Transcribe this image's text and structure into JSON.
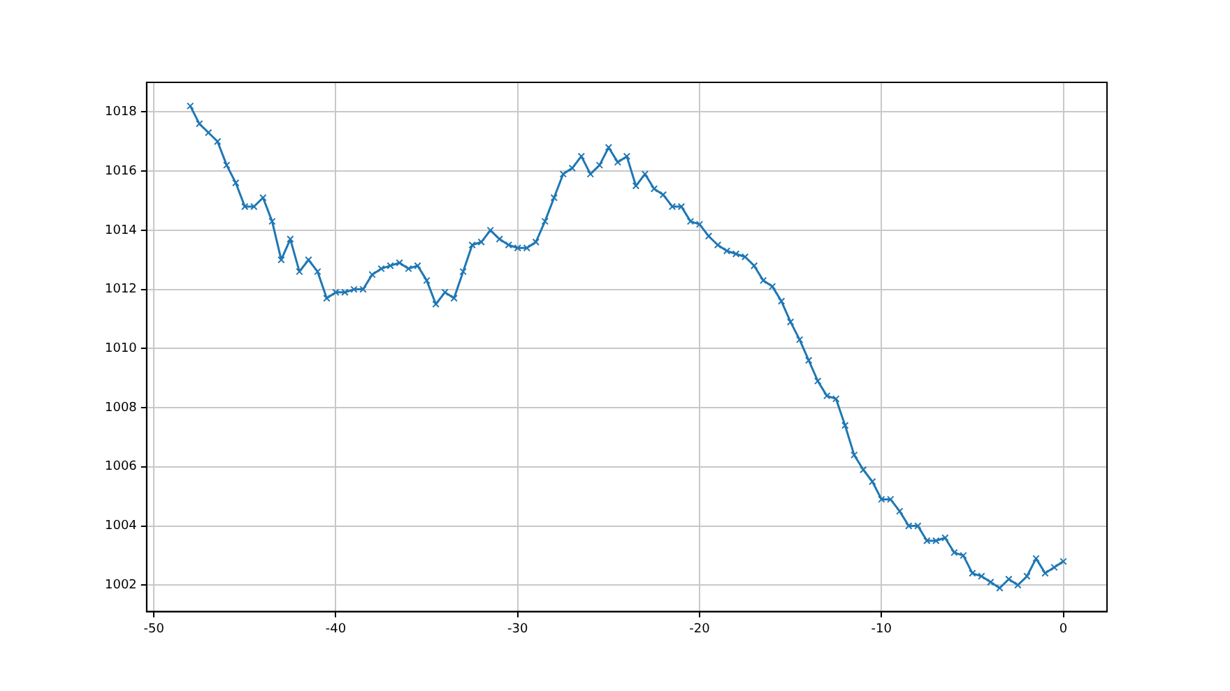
{
  "chart_data": {
    "type": "line",
    "x": [
      -48,
      -47.5,
      -47,
      -46.5,
      -46,
      -45.5,
      -45,
      -44.5,
      -44,
      -43.5,
      -43,
      -42.5,
      -42,
      -41.5,
      -41,
      -40.5,
      -40,
      -39.5,
      -39,
      -38.5,
      -38,
      -37.5,
      -37,
      -36.5,
      -36,
      -35.5,
      -35,
      -34.5,
      -34,
      -33.5,
      -33,
      -32.5,
      -32,
      -31.5,
      -31,
      -30.5,
      -30,
      -29.5,
      -29,
      -28.5,
      -28,
      -27.5,
      -27,
      -26.5,
      -26,
      -25.5,
      -25,
      -24.5,
      -24,
      -23.5,
      -23,
      -22.5,
      -22,
      -21.5,
      -21,
      -20.5,
      -20,
      -19.5,
      -19,
      -18.5,
      -18,
      -17.5,
      -17,
      -16.5,
      -16,
      -15.5,
      -15,
      -14.5,
      -14,
      -13.5,
      -13,
      -12.5,
      -12,
      -11.5,
      -11,
      -10.5,
      -10,
      -9.5,
      -9,
      -8.5,
      -8,
      -7.5,
      -7,
      -6.5,
      -6,
      -5.5,
      -5,
      -4.5,
      -4,
      -3.5,
      -3,
      -2.5,
      -2,
      -1.5,
      -1,
      -0.5,
      0
    ],
    "series": [
      {
        "color": "#1f77b4",
        "values": [
          1018.2,
          1017.6,
          1017.3,
          1017.0,
          1016.2,
          1015.6,
          1014.8,
          1014.8,
          1015.1,
          1014.3,
          1013.0,
          1013.7,
          1012.6,
          1013.0,
          1012.6,
          1011.7,
          1011.9,
          1011.9,
          1012.0,
          1012.0,
          1012.5,
          1012.7,
          1012.8,
          1012.9,
          1012.7,
          1012.8,
          1012.3,
          1011.5,
          1011.9,
          1011.7,
          1012.6,
          1013.5,
          1013.6,
          1014.0,
          1013.7,
          1013.5,
          1013.4,
          1013.4,
          1013.6,
          1014.3,
          1015.1,
          1015.9,
          1016.1,
          1016.5,
          1015.9,
          1016.2,
          1016.8,
          1016.3,
          1016.5,
          1015.5,
          1015.9,
          1015.4,
          1015.2,
          1014.8,
          1014.8,
          1014.3,
          1014.2,
          1013.8,
          1013.5,
          1013.3,
          1013.2,
          1013.1,
          1012.8,
          1012.3,
          1012.1,
          1011.6,
          1010.9,
          1010.3,
          1009.6,
          1008.9,
          1008.4,
          1008.3,
          1007.4,
          1006.4,
          1005.9,
          1005.5,
          1004.9,
          1004.9,
          1004.5,
          1004.0,
          1004.0,
          1003.5,
          1003.5,
          1003.6,
          1003.1,
          1003.0,
          1002.4,
          1002.3,
          1002.1,
          1001.9,
          1002.2,
          1002.0,
          1002.3,
          1002.9,
          1002.4,
          1002.6,
          1002.8
        ]
      }
    ],
    "xlim": [
      -50.4,
      2.4
    ],
    "xticks": [
      -50,
      -40,
      -30,
      -20,
      -10,
      0
    ],
    "ylim": [
      1001.1,
      1019.0
    ],
    "yticks": [
      1002,
      1004,
      1006,
      1008,
      1010,
      1012,
      1014,
      1016,
      1018
    ],
    "grid": true,
    "marker": "cross",
    "line_style": "solid",
    "legend": false
  }
}
